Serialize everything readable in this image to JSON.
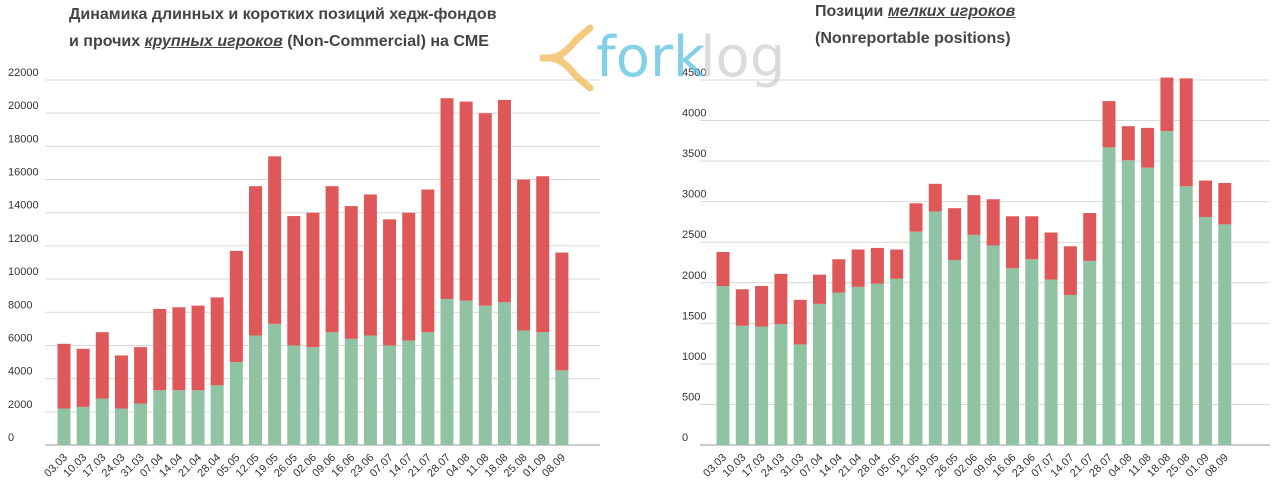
{
  "left_title": {
    "line1": "Динамика длинных и коротких позиций хедж-фондов",
    "line2_pre": "и прочих ",
    "line2_em": "крупных игроков",
    "line2_post": " (Non-Commercial) на CME"
  },
  "right_title": {
    "line1_pre": "Позиции ",
    "line1_em": "мелких игроков",
    "line2": "(Nonreportable positions)"
  },
  "logo": {
    "text_left": "fork",
    "text_right": "log"
  },
  "colors": {
    "long": "#8fc3a4",
    "short": "#df5859",
    "grid": "#d9d9d9",
    "axis": "#999999"
  },
  "chart_data": [
    {
      "type": "bar",
      "stacked": true,
      "title": "Динамика длинных и коротких позиций хедж-фондов и прочих крупных игроков (Non-Commercial) на CME",
      "categories": [
        "03.03",
        "10.03",
        "17.03",
        "24.03",
        "31.03",
        "07.04",
        "14.04",
        "21.04",
        "28.04",
        "05.05",
        "12.05",
        "19.05",
        "26.05",
        "02.06",
        "09.06",
        "16.06",
        "23.06",
        "07.07",
        "14.07",
        "21.07",
        "28.07",
        "04.08",
        "11.08",
        "18.08",
        "25.08",
        "01.09",
        "08.09"
      ],
      "series": [
        {
          "values": [
            2200,
            2300,
            2800,
            2200,
            2500,
            3300,
            3300,
            3300,
            3600,
            5000,
            6600,
            7300,
            6000,
            5900,
            6800,
            6400,
            6600,
            6000,
            6300,
            6800,
            8800,
            8700,
            8400,
            8600,
            6900,
            6800,
            4500
          ]
        },
        {
          "values": [
            3900,
            3500,
            4000,
            3200,
            3400,
            4900,
            5000,
            5100,
            5300,
            6700,
            9000,
            10100,
            7800,
            8100,
            8800,
            8000,
            8500,
            7600,
            7700,
            8600,
            12100,
            12000,
            11600,
            12200,
            9100,
            9400,
            7100
          ]
        }
      ],
      "ylim": [
        0,
        22000
      ],
      "yticks": [
        0,
        2000,
        4000,
        6000,
        8000,
        10000,
        12000,
        14000,
        16000,
        18000,
        20000,
        22000
      ]
    },
    {
      "type": "bar",
      "stacked": true,
      "title": "Позиции мелких игроков (Nonreportable positions)",
      "categories": [
        "03.03",
        "10.03",
        "17.03",
        "24.03",
        "31.03",
        "07.04",
        "14.04",
        "21.04",
        "28.04",
        "05.05",
        "12.05",
        "19.05",
        "26.05",
        "02.06",
        "09.06",
        "16.06",
        "23.06",
        "07.07",
        "14.07",
        "21.07",
        "28.07",
        "04.08",
        "11.08",
        "18.08",
        "25.08",
        "01.09",
        "08.09"
      ],
      "series": [
        {
          "values": [
            1960,
            1470,
            1460,
            1490,
            1240,
            1740,
            1880,
            1950,
            1990,
            2050,
            2630,
            2880,
            2280,
            2590,
            2460,
            2180,
            2290,
            2040,
            1850,
            2270,
            3670,
            3510,
            3420,
            3870,
            3190,
            2810,
            2720
          ]
        },
        {
          "values": [
            420,
            450,
            500,
            620,
            550,
            360,
            410,
            460,
            440,
            360,
            350,
            340,
            640,
            490,
            570,
            640,
            530,
            580,
            600,
            590,
            570,
            420,
            490,
            660,
            1330,
            450,
            510
          ]
        }
      ],
      "ylim": [
        0,
        4500
      ],
      "yticks": [
        0,
        500,
        1000,
        1500,
        2000,
        2500,
        3000,
        3500,
        4000,
        4500
      ]
    }
  ]
}
